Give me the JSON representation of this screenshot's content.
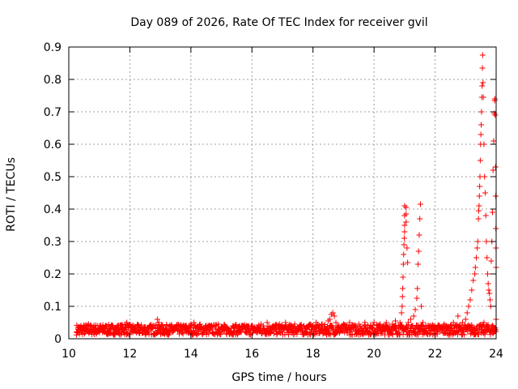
{
  "chart_data": {
    "type": "scatter",
    "title": "Day 089 of 2026, Rate Of TEC Index for receiver gvil",
    "xlabel": "GPS time / hours",
    "ylabel": "ROTI / TECUs",
    "xlim": [
      10,
      24
    ],
    "ylim": [
      0,
      0.9
    ],
    "x_ticks": [
      10,
      12,
      14,
      16,
      18,
      20,
      22,
      24
    ],
    "x_tick_labels": [
      "10",
      "12",
      "14",
      "16",
      "18",
      "20",
      "22",
      "24"
    ],
    "y_ticks": [
      0,
      0.1,
      0.2,
      0.3,
      0.4,
      0.5,
      0.6,
      0.7,
      0.8,
      0.9
    ],
    "y_tick_labels": [
      "0",
      "0.1",
      "0.2",
      "0.3",
      "0.4",
      "0.5",
      "0.6",
      "0.7",
      "0.8",
      "0.9"
    ],
    "grid": true,
    "marker": "+",
    "series_color": "#ff0000",
    "series": [
      {
        "name": "ROTI",
        "points": [
          [
            10.25,
            0.02
          ],
          [
            10.3,
            0.03
          ],
          [
            10.35,
            0.015
          ],
          [
            10.4,
            0.04
          ],
          [
            10.45,
            0.025
          ],
          [
            10.5,
            0.035
          ],
          [
            10.55,
            0.02
          ],
          [
            10.6,
            0.03
          ],
          [
            10.65,
            0.045
          ],
          [
            10.7,
            0.025
          ],
          [
            10.75,
            0.02
          ],
          [
            10.8,
            0.035
          ],
          [
            10.85,
            0.03
          ],
          [
            10.9,
            0.015
          ],
          [
            10.95,
            0.04
          ],
          [
            11.0,
            0.025
          ],
          [
            11.05,
            0.03
          ],
          [
            11.1,
            0.02
          ],
          [
            11.15,
            0.035
          ],
          [
            11.2,
            0.04
          ],
          [
            11.25,
            0.025
          ],
          [
            11.3,
            0.03
          ],
          [
            11.35,
            0.02
          ],
          [
            11.4,
            0.035
          ],
          [
            11.45,
            0.015
          ],
          [
            11.5,
            0.03
          ],
          [
            11.55,
            0.025
          ],
          [
            11.6,
            0.04
          ],
          [
            11.65,
            0.02
          ],
          [
            11.7,
            0.03
          ],
          [
            11.75,
            0.035
          ],
          [
            11.8,
            0.025
          ],
          [
            11.85,
            0.045
          ],
          [
            11.9,
            0.05
          ],
          [
            11.95,
            0.035
          ],
          [
            12.0,
            0.02
          ],
          [
            12.1,
            0.03
          ],
          [
            12.2,
            0.025
          ],
          [
            12.3,
            0.02
          ],
          [
            12.4,
            0.03
          ],
          [
            12.5,
            0.015
          ],
          [
            12.6,
            0.025
          ],
          [
            12.7,
            0.03
          ],
          [
            12.8,
            0.04
          ],
          [
            12.9,
            0.06
          ],
          [
            12.95,
            0.05
          ],
          [
            13.0,
            0.035
          ],
          [
            13.1,
            0.03
          ],
          [
            13.2,
            0.04
          ],
          [
            13.3,
            0.025
          ],
          [
            13.4,
            0.02
          ],
          [
            13.5,
            0.035
          ],
          [
            13.6,
            0.03
          ],
          [
            13.7,
            0.025
          ],
          [
            13.8,
            0.04
          ],
          [
            13.9,
            0.03
          ],
          [
            14.0,
            0.045
          ],
          [
            14.1,
            0.05
          ],
          [
            14.2,
            0.035
          ],
          [
            14.3,
            0.045
          ],
          [
            14.4,
            0.03
          ],
          [
            14.5,
            0.025
          ],
          [
            14.6,
            0.04
          ],
          [
            14.7,
            0.02
          ],
          [
            14.8,
            0.03
          ],
          [
            14.9,
            0.045
          ],
          [
            15.0,
            0.035
          ],
          [
            15.1,
            0.025
          ],
          [
            15.2,
            0.03
          ],
          [
            15.3,
            0.02
          ],
          [
            15.4,
            0.035
          ],
          [
            15.5,
            0.025
          ],
          [
            15.6,
            0.03
          ],
          [
            15.7,
            0.04
          ],
          [
            15.8,
            0.02
          ],
          [
            15.9,
            0.03
          ],
          [
            16.0,
            0.04
          ],
          [
            16.1,
            0.025
          ],
          [
            16.2,
            0.035
          ],
          [
            16.3,
            0.045
          ],
          [
            16.4,
            0.03
          ],
          [
            16.5,
            0.05
          ],
          [
            16.6,
            0.035
          ],
          [
            16.7,
            0.04
          ],
          [
            16.8,
            0.03
          ],
          [
            16.9,
            0.045
          ],
          [
            17.0,
            0.035
          ],
          [
            17.1,
            0.05
          ],
          [
            17.2,
            0.03
          ],
          [
            17.3,
            0.04
          ],
          [
            17.4,
            0.045
          ],
          [
            17.5,
            0.035
          ],
          [
            17.6,
            0.025
          ],
          [
            17.7,
            0.04
          ],
          [
            17.8,
            0.03
          ],
          [
            17.9,
            0.045
          ],
          [
            18.0,
            0.04
          ],
          [
            18.1,
            0.05
          ],
          [
            18.2,
            0.035
          ],
          [
            18.3,
            0.045
          ],
          [
            18.4,
            0.03
          ],
          [
            18.5,
            0.055
          ],
          [
            18.55,
            0.06
          ],
          [
            18.6,
            0.075
          ],
          [
            18.65,
            0.08
          ],
          [
            18.7,
            0.07
          ],
          [
            18.75,
            0.05
          ],
          [
            18.8,
            0.04
          ],
          [
            18.9,
            0.035
          ],
          [
            19.0,
            0.045
          ],
          [
            19.1,
            0.03
          ],
          [
            19.2,
            0.05
          ],
          [
            19.3,
            0.035
          ],
          [
            19.4,
            0.04
          ],
          [
            19.5,
            0.045
          ],
          [
            19.6,
            0.03
          ],
          [
            19.7,
            0.05
          ],
          [
            19.8,
            0.04
          ],
          [
            19.9,
            0.035
          ],
          [
            20.0,
            0.05
          ],
          [
            20.1,
            0.04
          ],
          [
            20.2,
            0.045
          ],
          [
            20.3,
            0.035
          ],
          [
            20.4,
            0.05
          ],
          [
            20.5,
            0.04
          ],
          [
            20.6,
            0.045
          ],
          [
            20.7,
            0.055
          ],
          [
            20.8,
            0.04
          ],
          [
            20.85,
            0.05
          ],
          [
            20.9,
            0.08
          ],
          [
            20.92,
            0.1
          ],
          [
            20.93,
            0.13
          ],
          [
            20.94,
            0.155
          ],
          [
            20.95,
            0.19
          ],
          [
            20.96,
            0.23
          ],
          [
            20.97,
            0.26
          ],
          [
            20.98,
            0.29
          ],
          [
            20.99,
            0.31
          ],
          [
            21.0,
            0.33
          ],
          [
            21.0,
            0.35
          ],
          [
            21.0,
            0.38
          ],
          [
            21.0,
            0.41
          ],
          [
            21.05,
            0.36
          ],
          [
            21.05,
            0.385
          ],
          [
            21.05,
            0.405
          ],
          [
            21.08,
            0.28
          ],
          [
            21.1,
            0.235
          ],
          [
            21.12,
            0.05
          ],
          [
            21.2,
            0.06
          ],
          [
            21.3,
            0.07
          ],
          [
            21.35,
            0.09
          ],
          [
            21.4,
            0.125
          ],
          [
            21.42,
            0.155
          ],
          [
            21.44,
            0.23
          ],
          [
            21.46,
            0.27
          ],
          [
            21.48,
            0.32
          ],
          [
            21.5,
            0.37
          ],
          [
            21.52,
            0.415
          ],
          [
            21.55,
            0.1
          ],
          [
            21.6,
            0.05
          ],
          [
            21.7,
            0.04
          ],
          [
            21.8,
            0.035
          ],
          [
            21.9,
            0.04
          ],
          [
            22.0,
            0.03
          ],
          [
            22.1,
            0.04
          ],
          [
            22.2,
            0.035
          ],
          [
            22.3,
            0.045
          ],
          [
            22.4,
            0.03
          ],
          [
            22.5,
            0.04
          ],
          [
            22.6,
            0.05
          ],
          [
            22.7,
            0.035
          ],
          [
            22.75,
            0.07
          ],
          [
            22.8,
            0.04
          ],
          [
            22.9,
            0.05
          ],
          [
            23.0,
            0.06
          ],
          [
            23.05,
            0.08
          ],
          [
            23.1,
            0.1
          ],
          [
            23.15,
            0.12
          ],
          [
            23.2,
            0.15
          ],
          [
            23.25,
            0.18
          ],
          [
            23.3,
            0.2
          ],
          [
            23.32,
            0.22
          ],
          [
            23.35,
            0.25
          ],
          [
            23.38,
            0.28
          ],
          [
            23.4,
            0.3
          ],
          [
            23.42,
            0.37
          ],
          [
            23.43,
            0.395
          ],
          [
            23.44,
            0.41
          ],
          [
            23.45,
            0.44
          ],
          [
            23.46,
            0.47
          ],
          [
            23.47,
            0.5
          ],
          [
            23.48,
            0.55
          ],
          [
            23.49,
            0.6
          ],
          [
            23.5,
            0.63
          ],
          [
            23.51,
            0.66
          ],
          [
            23.52,
            0.7
          ],
          [
            23.53,
            0.745
          ],
          [
            23.54,
            0.78
          ],
          [
            23.55,
            0.835
          ],
          [
            23.56,
            0.875
          ],
          [
            23.57,
            0.79
          ],
          [
            23.58,
            0.745
          ],
          [
            23.6,
            0.6
          ],
          [
            23.62,
            0.5
          ],
          [
            23.64,
            0.45
          ],
          [
            23.66,
            0.38
          ],
          [
            23.68,
            0.3
          ],
          [
            23.7,
            0.25
          ],
          [
            23.72,
            0.2
          ],
          [
            23.74,
            0.17
          ],
          [
            23.76,
            0.15
          ],
          [
            23.78,
            0.14
          ],
          [
            23.8,
            0.12
          ],
          [
            23.82,
            0.1
          ],
          [
            23.84,
            0.24
          ],
          [
            23.86,
            0.3
          ],
          [
            23.88,
            0.39
          ],
          [
            23.9,
            0.52
          ],
          [
            23.92,
            0.61
          ],
          [
            23.94,
            0.695
          ],
          [
            23.95,
            0.735
          ],
          [
            23.96,
            0.74
          ],
          [
            23.97,
            0.69
          ],
          [
            23.98,
            0.53
          ],
          [
            23.985,
            0.44
          ],
          [
            23.99,
            0.34
          ],
          [
            23.995,
            0.28
          ],
          [
            24.0,
            0.22
          ],
          [
            24.0,
            0.06
          ],
          [
            23.6,
            0.05
          ],
          [
            23.7,
            0.04
          ],
          [
            23.9,
            0.03
          ]
        ]
      }
    ]
  }
}
